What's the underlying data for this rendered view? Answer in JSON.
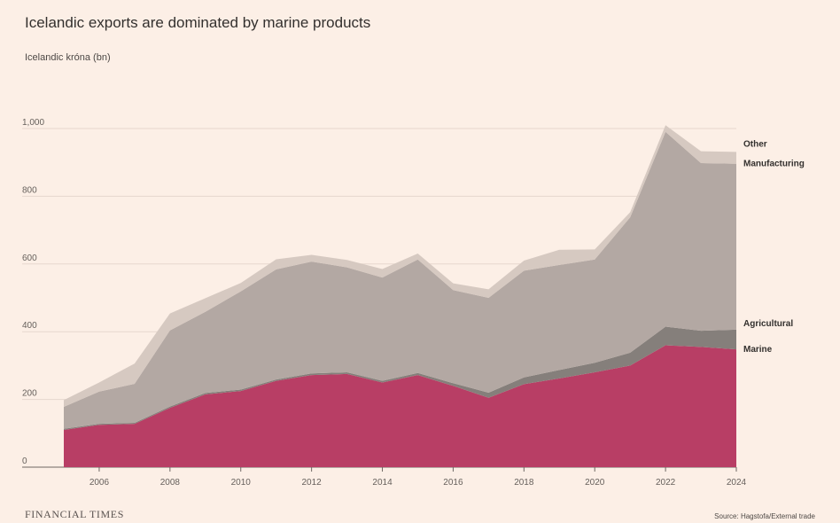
{
  "chart_data": {
    "type": "area",
    "stacked": true,
    "title": "Icelandic exports are dominated by marine products",
    "ylabel": "Icelandic króna (bn)",
    "xlabel": "",
    "x": [
      2005,
      2006,
      2007,
      2008,
      2009,
      2010,
      2011,
      2012,
      2013,
      2014,
      2015,
      2016,
      2017,
      2018,
      2019,
      2020,
      2021,
      2022,
      2023,
      2024
    ],
    "xlim": [
      2005,
      2024
    ],
    "ylim": [
      0,
      1000
    ],
    "x_ticks": [
      "2006",
      "2008",
      "2010",
      "2012",
      "2014",
      "2016",
      "2018",
      "2020",
      "2022",
      "2024"
    ],
    "y_ticks": [
      "0",
      "200",
      "400",
      "600",
      "800",
      "1,000"
    ],
    "grid": "horizontal",
    "series": [
      {
        "name": "Marine",
        "color": "#b83e65",
        "values": [
          110,
          125,
          128,
          175,
          215,
          225,
          255,
          272,
          275,
          250,
          272,
          240,
          205,
          245,
          262,
          280,
          300,
          360,
          355,
          348
        ]
      },
      {
        "name": "Agricultural",
        "color": "#857f7b",
        "values": [
          3,
          3,
          3,
          4,
          4,
          4,
          4,
          5,
          5,
          5,
          6,
          8,
          15,
          20,
          25,
          28,
          38,
          55,
          48,
          58
        ]
      },
      {
        "name": "Manufacturing",
        "color": "#b3a8a3",
        "values": [
          65,
          95,
          115,
          225,
          240,
          290,
          325,
          330,
          310,
          305,
          335,
          275,
          280,
          315,
          310,
          305,
          400,
          575,
          495,
          490
        ]
      },
      {
        "name": "Other",
        "color": "#d6c9c1",
        "values": [
          20,
          27,
          60,
          50,
          40,
          25,
          30,
          20,
          22,
          25,
          18,
          20,
          25,
          30,
          45,
          30,
          15,
          20,
          35,
          35
        ]
      }
    ]
  },
  "footer": {
    "brand": "FINANCIAL TIMES",
    "source": "Source: Hagstofa/External trade"
  }
}
